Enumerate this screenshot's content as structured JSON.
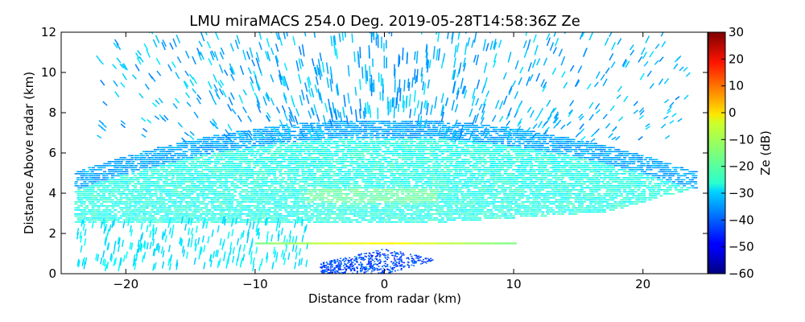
{
  "chart_data": {
    "type": "heatmap",
    "title": "LMU miraMACS 254.0 Deg. 2019-05-28T14:58:36Z  Ze",
    "xlabel": "Distance from radar (km)",
    "ylabel": "Distance Above radar  (km)",
    "xlim": [
      -25,
      25
    ],
    "ylim": [
      0,
      12
    ],
    "x_ticks": [
      -20,
      -10,
      0,
      10,
      20
    ],
    "x_tick_labels": [
      "−20",
      "−10",
      "0",
      "10",
      "20"
    ],
    "y_ticks": [
      0,
      2,
      4,
      6,
      8,
      10,
      12
    ],
    "y_tick_labels": [
      "0",
      "2",
      "4",
      "6",
      "8",
      "10",
      "12"
    ],
    "colorbar": {
      "label": "Ze (dB)",
      "min": -60,
      "max": 30,
      "ticks": [
        -60,
        -50,
        -40,
        -30,
        -20,
        -10,
        0,
        10,
        20,
        30
      ],
      "tick_labels": [
        "−60",
        "−50",
        "−40",
        "−30",
        "−20",
        "−10",
        "0",
        "10",
        "20",
        "30"
      ],
      "colormap": "jet"
    },
    "features": [
      {
        "name": "cloud layer",
        "x_range": [
          -24,
          24
        ],
        "z_range": [
          2.5,
          7.5
        ],
        "ze_db": -24
      },
      {
        "name": "cloud core",
        "x_range": [
          -6,
          4
        ],
        "z_range": [
          3.5,
          4.2
        ],
        "ze_db": -18
      },
      {
        "name": "bright band",
        "x_range": [
          -10,
          10
        ],
        "z_range": [
          1.45,
          1.55
        ],
        "ze_db": -3
      },
      {
        "name": "upper sparse echoes",
        "x_range": [
          -24,
          24
        ],
        "z_range": [
          7.5,
          12
        ],
        "ze_db": -33
      },
      {
        "name": "near-radar clutter",
        "x_range": [
          -5,
          4
        ],
        "z_range": [
          0,
          1.3
        ],
        "ze_db": -42
      }
    ],
    "scan_lower_edge": {
      "x": [
        0,
        24
      ],
      "z": [
        0,
        4.2
      ]
    },
    "scan_upper_edge_top_x": [
      -22,
      21
    ]
  }
}
